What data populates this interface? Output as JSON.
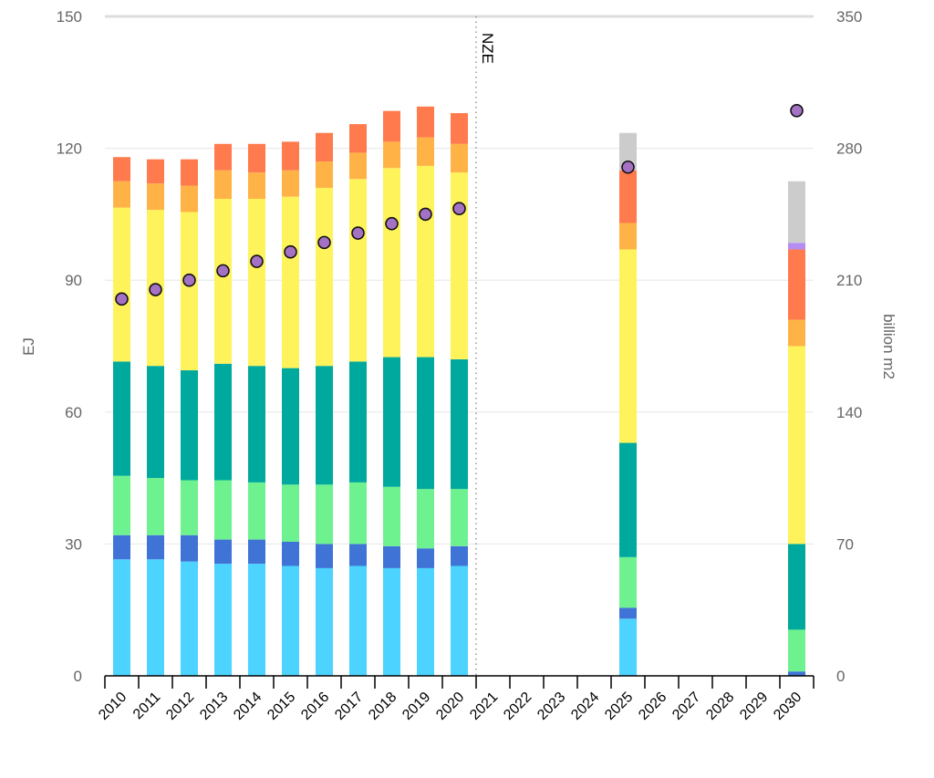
{
  "chart_data": {
    "type": "bar",
    "categories": [
      "2010",
      "2011",
      "2012",
      "2013",
      "2014",
      "2015",
      "2016",
      "2017",
      "2018",
      "2019",
      "2020",
      "2021",
      "2022",
      "2023",
      "2024",
      "2025",
      "2026",
      "2027",
      "2028",
      "2029",
      "2030"
    ],
    "ylabel": "EJ",
    "y2label": "billion m2",
    "ylim": [
      0,
      150
    ],
    "y2lim": [
      0,
      350
    ],
    "yticks": [
      0,
      30,
      60,
      90,
      120,
      150
    ],
    "y2ticks": [
      0,
      70,
      140,
      210,
      280,
      350
    ],
    "grid": true,
    "legend": "none",
    "annotation": {
      "text": "NZE",
      "after_category": "2020"
    },
    "series": [
      {
        "color": "#4dd3ff",
        "values": [
          26.5,
          26.5,
          26,
          25.5,
          25.5,
          25,
          24.5,
          25,
          24.5,
          24.5,
          25,
          null,
          null,
          null,
          null,
          13,
          null,
          null,
          null,
          null,
          0
        ]
      },
      {
        "color": "#3f74d6",
        "values": [
          5.5,
          5.5,
          6,
          5.5,
          5.5,
          5.5,
          5.5,
          5,
          5,
          4.5,
          4.5,
          null,
          null,
          null,
          null,
          2.5,
          null,
          null,
          null,
          null,
          1
        ]
      },
      {
        "color": "#6ef28f",
        "values": [
          13.5,
          13,
          12.5,
          13.5,
          13,
          13,
          13.5,
          14,
          13.5,
          13.5,
          13,
          null,
          null,
          null,
          null,
          11.5,
          null,
          null,
          null,
          null,
          9.5
        ]
      },
      {
        "color": "#00a99d",
        "values": [
          26,
          25.5,
          25,
          26.5,
          26.5,
          26.5,
          27,
          27.5,
          29.5,
          30,
          29.5,
          null,
          null,
          null,
          null,
          26,
          null,
          null,
          null,
          null,
          19.5
        ]
      },
      {
        "color": "#fff35c",
        "values": [
          35,
          35.5,
          36,
          37.5,
          38,
          39,
          40.5,
          41.5,
          43,
          43.5,
          42.5,
          null,
          null,
          null,
          null,
          44,
          null,
          null,
          null,
          null,
          45
        ]
      },
      {
        "color": "#ffb347",
        "values": [
          6,
          6,
          6,
          6.5,
          6,
          6,
          6,
          6,
          6,
          6.5,
          6.5,
          null,
          null,
          null,
          null,
          6,
          null,
          null,
          null,
          null,
          6
        ]
      },
      {
        "color": "#ff7a4d",
        "values": [
          5.5,
          5.5,
          6,
          6,
          6.5,
          6.5,
          6.5,
          6.5,
          7,
          7,
          7,
          null,
          null,
          null,
          null,
          12,
          null,
          null,
          null,
          null,
          16
        ]
      },
      {
        "color": "#b48cf2",
        "values": [
          0,
          0,
          0,
          0,
          0,
          0,
          0,
          0,
          0,
          0,
          0,
          null,
          null,
          null,
          null,
          0,
          null,
          null,
          null,
          null,
          1.5
        ]
      },
      {
        "color": "#cccccc",
        "values": [
          0,
          0,
          0,
          0,
          0,
          0,
          0,
          0,
          0,
          0,
          0,
          null,
          null,
          null,
          null,
          8.5,
          null,
          null,
          null,
          null,
          14
        ]
      }
    ],
    "floor_area_series": {
      "axis": "right",
      "color": "#a471c4",
      "values": [
        200,
        205,
        210,
        215,
        220,
        225,
        230,
        235,
        240,
        245,
        248,
        null,
        null,
        null,
        null,
        270,
        null,
        null,
        null,
        null,
        300
      ]
    }
  }
}
